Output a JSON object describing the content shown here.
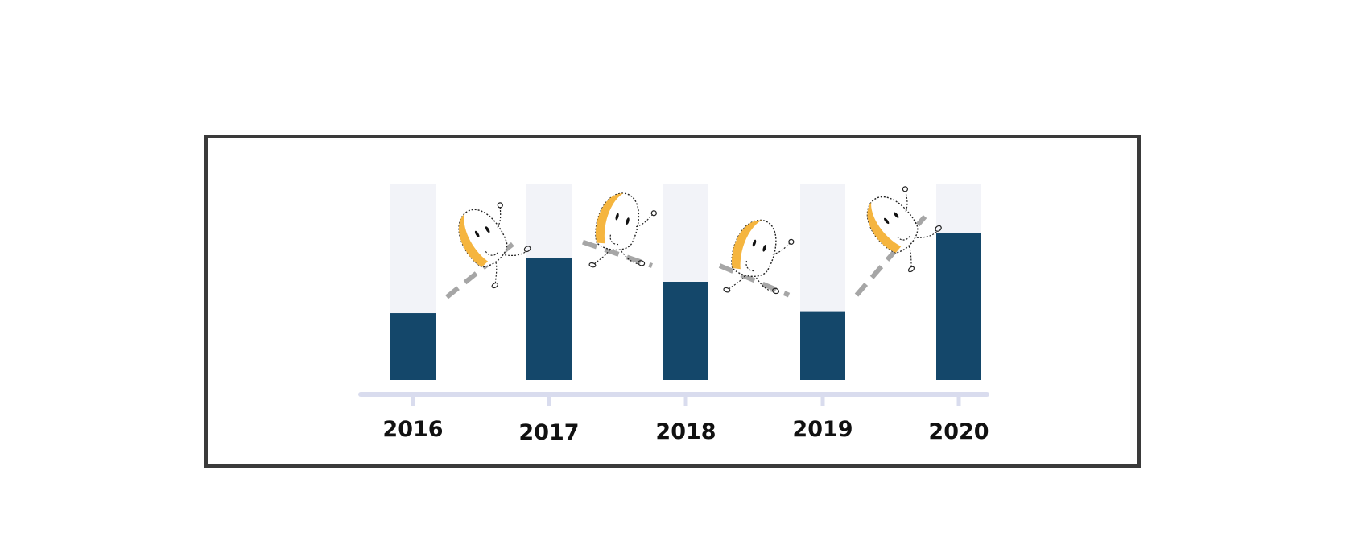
{
  "chart_data": {
    "type": "bar",
    "categories": [
      "2016",
      "2017",
      "2018",
      "2019",
      "2020"
    ],
    "values": [
      34,
      62,
      50,
      35,
      75
    ],
    "ylim": [
      0,
      100
    ],
    "bar_color": "#14476a",
    "track_color": "#f2f3f8",
    "axis_color": "#d9dcee",
    "trend_color": "#a6a6a6",
    "mascot_accent": "#f5b53f",
    "grid": false,
    "legend": "none",
    "trend_line": "dashed"
  }
}
